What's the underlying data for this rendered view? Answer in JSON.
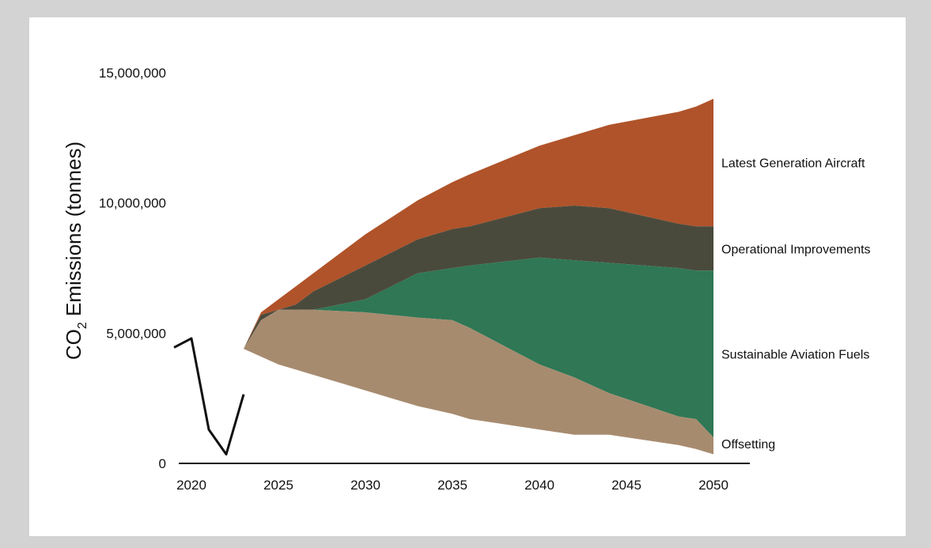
{
  "chart_data": {
    "type": "area",
    "xlabel": "",
    "ylabel": {
      "prefix": "CO",
      "subscript": "2",
      "suffix": " Emissions (tonnes)"
    },
    "x_ticks": [
      2020,
      2025,
      2030,
      2035,
      2040,
      2045,
      2050
    ],
    "y_ticks": [
      {
        "value": 0,
        "label": "0"
      },
      {
        "value": 5000000,
        "label": "5,000,000"
      },
      {
        "value": 10000000,
        "label": "10,000,000"
      },
      {
        "value": 15000000,
        "label": "15,000,000"
      }
    ],
    "xlim": [
      2019,
      2052
    ],
    "ylim": [
      0,
      15000000
    ],
    "historical": {
      "x": [
        2019,
        2020,
        2021,
        2022,
        2023
      ],
      "values": [
        4450000,
        4800000,
        1300000,
        350000,
        2650000
      ]
    },
    "years": [
      2023,
      2024,
      2025,
      2026,
      2027,
      2030,
      2033,
      2035,
      2036,
      2040,
      2042,
      2044,
      2048,
      2049,
      2050
    ],
    "boundaries": {
      "total": [
        4400000,
        5800000,
        6300000,
        6800000,
        7300000,
        8800000,
        10100000,
        10800000,
        11100000,
        12200000,
        12600000,
        13000000,
        13500000,
        13700000,
        14000000
      ],
      "after_latest_generation_aircraft": [
        4400000,
        5700000,
        5900000,
        6100000,
        6600000,
        7600000,
        8600000,
        9000000,
        9100000,
        9800000,
        9900000,
        9800000,
        9200000,
        9100000,
        9100000
      ],
      "after_operational_improvements": [
        4400000,
        5500000,
        5900000,
        5900000,
        5900000,
        6300000,
        7300000,
        7500000,
        7600000,
        7900000,
        7800000,
        7700000,
        7500000,
        7400000,
        7400000
      ],
      "after_sustainable_aviation_fuels": [
        4400000,
        5500000,
        5900000,
        5900000,
        5900000,
        5800000,
        5600000,
        5500000,
        5200000,
        3800000,
        3300000,
        2700000,
        1800000,
        1700000,
        1000000
      ],
      "after_offsetting": [
        4400000,
        4100000,
        3800000,
        3600000,
        3400000,
        2800000,
        2200000,
        1900000,
        1700000,
        1300000,
        1100000,
        1100000,
        700000,
        550000,
        350000
      ]
    },
    "series": [
      {
        "name": "Latest Generation Aircraft",
        "color": "#b0532a"
      },
      {
        "name": "Operational Improvements",
        "color": "#4a4a3c"
      },
      {
        "name": "Sustainable Aviation Fuels",
        "color": "#2f7755"
      },
      {
        "name": "Offsetting",
        "color": "#a78b6f"
      }
    ],
    "historical_color": "#111111",
    "grid": false,
    "legend_placement": "right"
  }
}
